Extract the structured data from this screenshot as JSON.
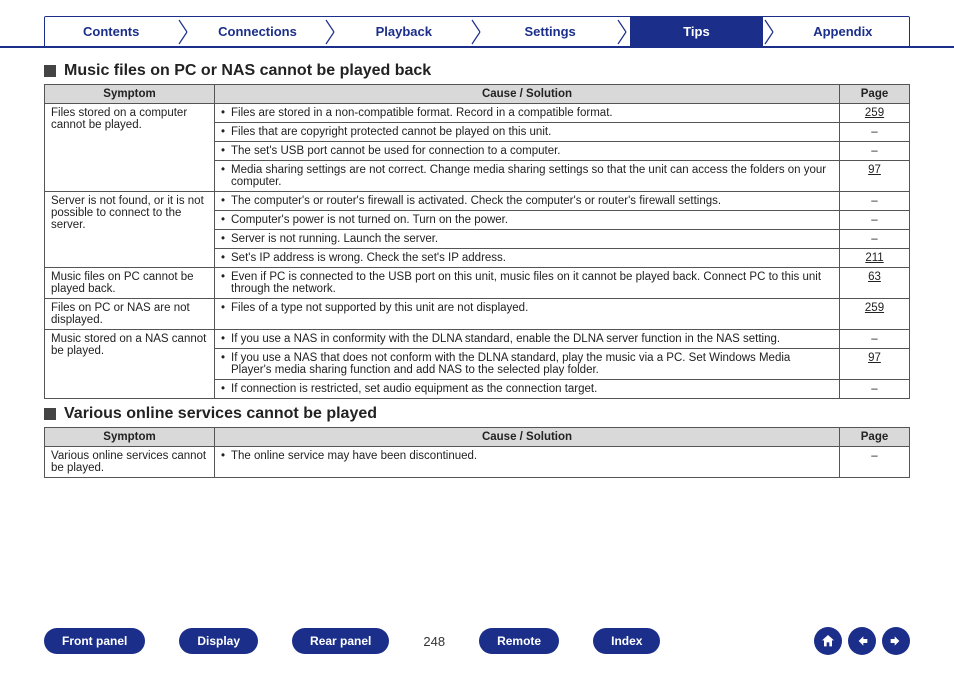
{
  "colors": {
    "brand": "#1b2f8a",
    "header_bg": "#d9d9d9",
    "border": "#555555",
    "text": "#222222"
  },
  "top_tabs": [
    "Contents",
    "Connections",
    "Playback",
    "Settings",
    "Tips",
    "Appendix"
  ],
  "top_tab_active_index": 4,
  "sections": [
    {
      "title": "Music files on PC or NAS cannot be played back",
      "columns": [
        "Symptom",
        "Cause / Solution",
        "Page"
      ],
      "groups": [
        {
          "symptom": "Files stored on a computer cannot be played.",
          "rows": [
            {
              "cause": "Files are stored in a non-compatible format. Record in a compatible format.",
              "page": "259",
              "link": true
            },
            {
              "cause": "Files that are copyright protected cannot be played on this unit.",
              "page": "–",
              "link": false
            },
            {
              "cause": "The set's USB port cannot be used for connection to a computer.",
              "page": "–",
              "link": false
            },
            {
              "cause": "Media sharing settings are not correct. Change media sharing settings so that the unit can access the folders on your computer.",
              "page": "97",
              "link": true
            }
          ]
        },
        {
          "symptom": "Server is not found, or it is not possible to connect to the server.",
          "rows": [
            {
              "cause": "The computer's or router's firewall is activated. Check the computer's or router's firewall settings.",
              "page": "–",
              "link": false
            },
            {
              "cause": "Computer's power is not turned on. Turn on the power.",
              "page": "–",
              "link": false
            },
            {
              "cause": "Server is not running. Launch the server.",
              "page": "–",
              "link": false
            },
            {
              "cause": "Set's IP address is wrong. Check the set's IP address.",
              "page": "211",
              "link": true
            }
          ]
        },
        {
          "symptom": "Music files on PC cannot be played back.",
          "rows": [
            {
              "cause": "Even if PC is connected to the USB port on this unit, music files on it cannot be played back. Connect PC to this unit through the network.",
              "page": "63",
              "link": true
            }
          ]
        },
        {
          "symptom": "Files on PC or NAS are not displayed.",
          "rows": [
            {
              "cause": "Files of a type not supported by this unit are not displayed.",
              "page": "259",
              "link": true
            }
          ]
        },
        {
          "symptom": "Music stored on a NAS cannot be played.",
          "rows": [
            {
              "cause": "If you use a NAS in conformity with the DLNA standard, enable the DLNA server function in the NAS setting.",
              "page": "–",
              "link": false
            },
            {
              "cause": "If you use a NAS that does not conform with the DLNA standard, play the music via a PC. Set Windows Media Player's media sharing function and add NAS to the selected play folder.",
              "page": "97",
              "link": true
            },
            {
              "cause": "If connection is restricted, set audio equipment as the connection target.",
              "page": "–",
              "link": false
            }
          ]
        }
      ]
    },
    {
      "title": "Various online services cannot be played",
      "columns": [
        "Symptom",
        "Cause / Solution",
        "Page"
      ],
      "groups": [
        {
          "symptom": "Various online services cannot be played.",
          "rows": [
            {
              "cause": "The online service may have been discontinued.",
              "page": "–",
              "link": false
            }
          ]
        }
      ]
    }
  ],
  "bottom_nav": [
    "Front panel",
    "Display",
    "Rear panel"
  ],
  "bottom_nav_right": [
    "Remote",
    "Index"
  ],
  "page_number": "248",
  "icons": {
    "home": "home-icon",
    "back": "arrow-left-icon",
    "forward": "arrow-right-icon"
  }
}
